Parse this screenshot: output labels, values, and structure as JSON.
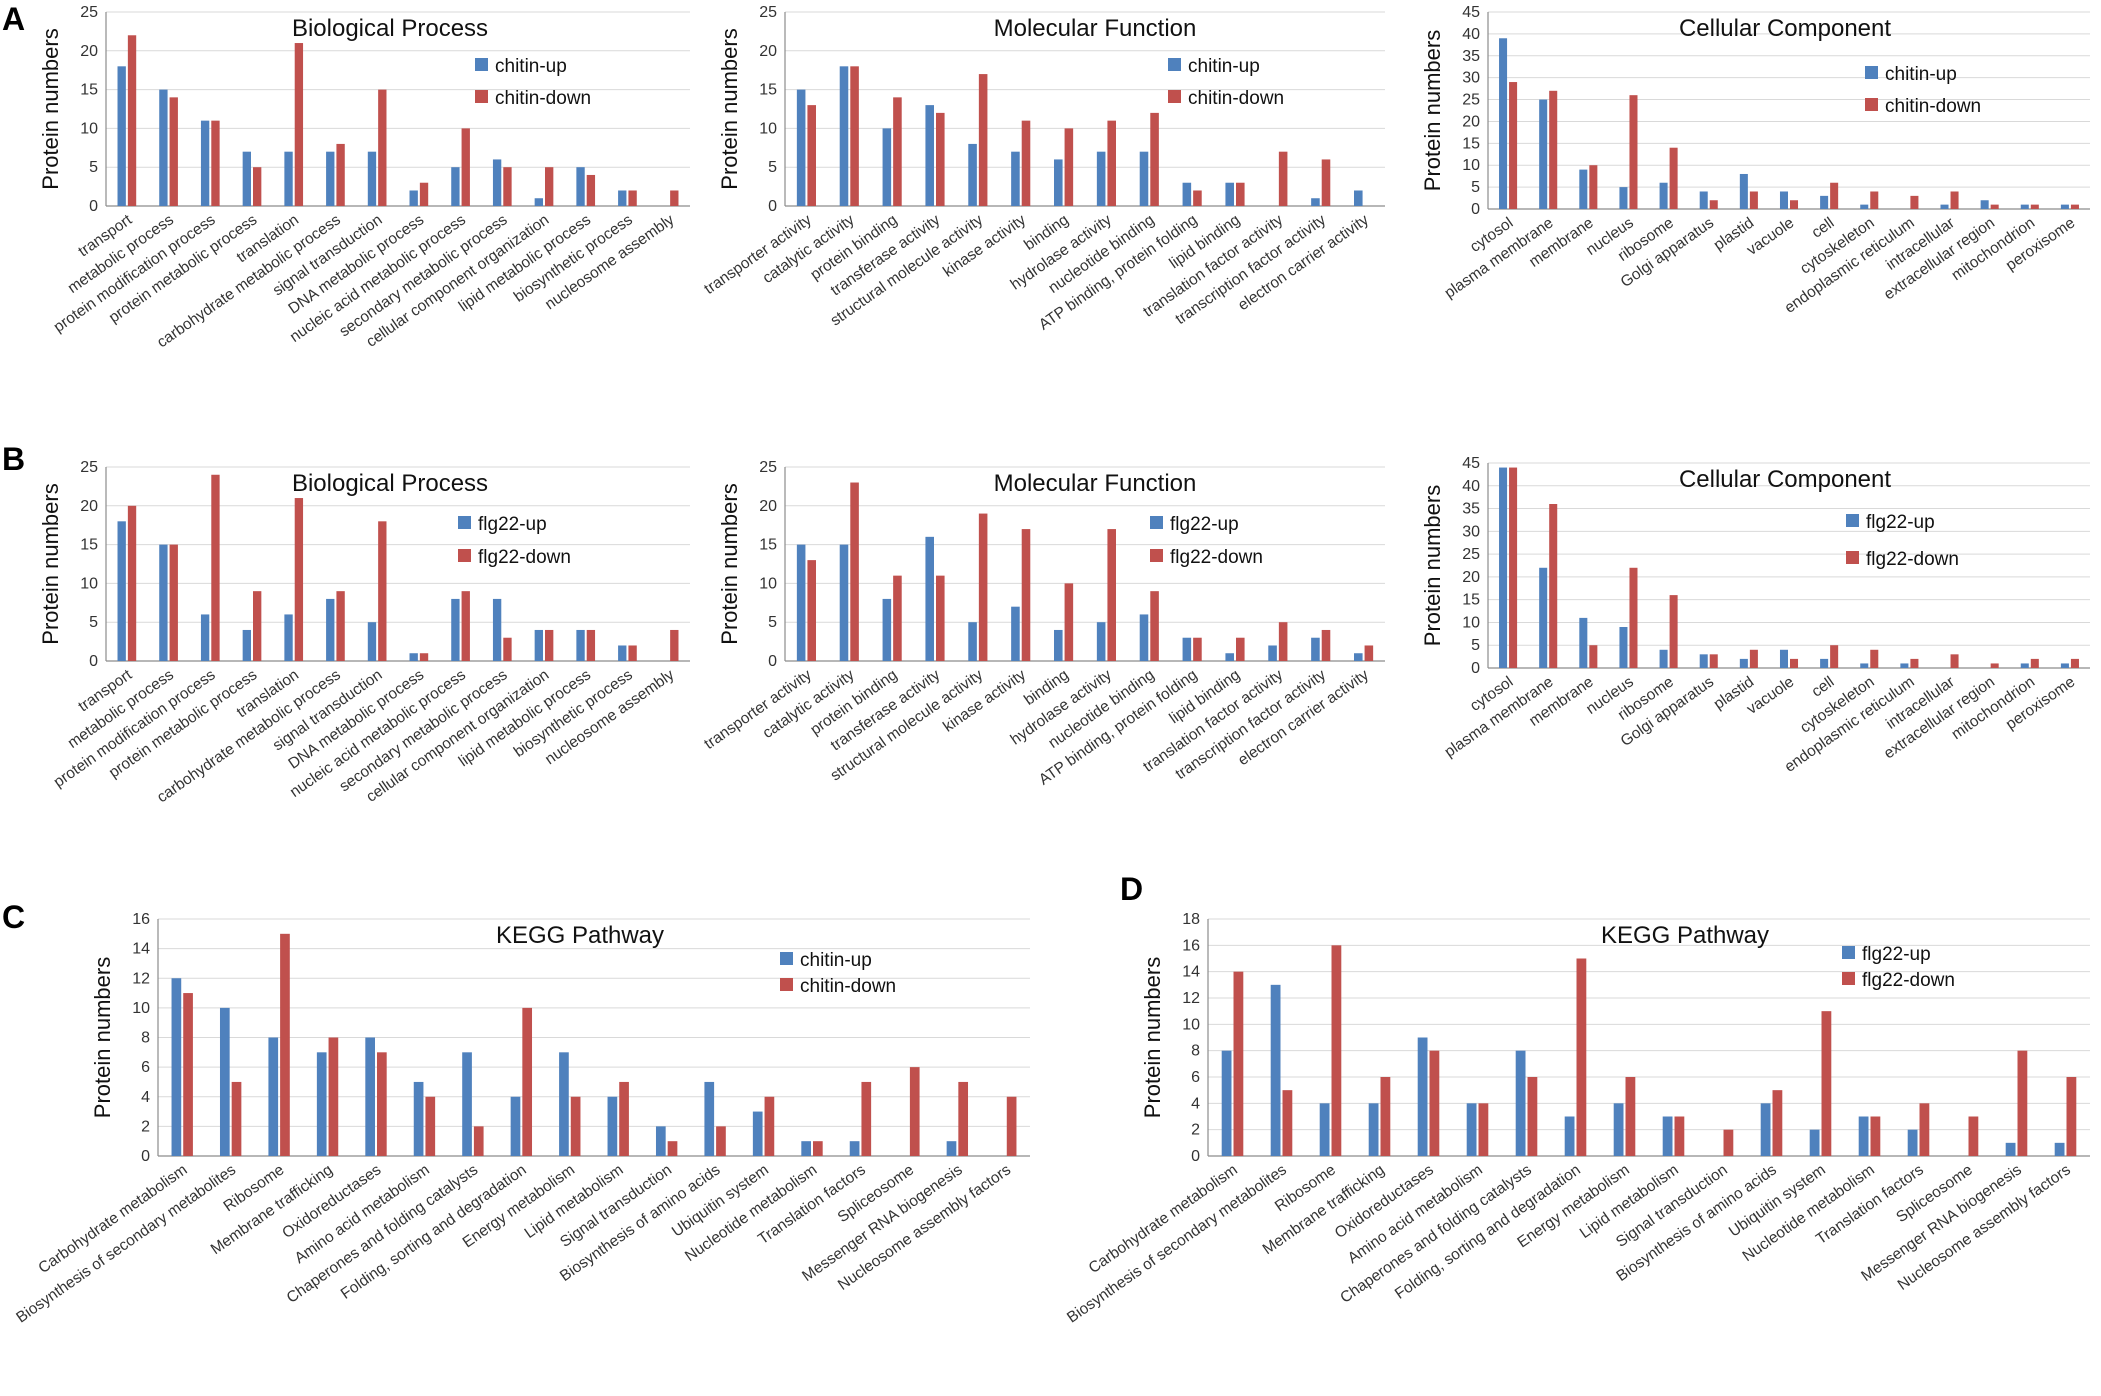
{
  "panel_labels": [
    "A",
    "B",
    "C",
    "D"
  ],
  "colors": {
    "up": "#4f81bd",
    "down": "#c0504d",
    "grid": "#d9d9d9"
  },
  "chart_data": [
    {
      "panel": "A",
      "type": "bar",
      "title": "Biological Process",
      "ylabel": "Protein numbers",
      "ylim": [
        0,
        25
      ],
      "yticks": [
        0,
        5,
        10,
        15,
        20,
        25
      ],
      "categories": [
        "transport",
        "metabolic process",
        "protein modification process",
        "protein metabolic process",
        "translation",
        "carbohydrate metabolic process",
        "signal transduction",
        "DNA metabolic process",
        "nucleic acid metabolic process",
        "secondary metabolic process",
        "cellular component organization",
        "lipid metabolic process",
        "biosynthetic process",
        "nucleosome assembly"
      ],
      "series": [
        {
          "name": "chitin-up",
          "values": [
            18,
            15,
            11,
            7,
            7,
            7,
            7,
            2,
            5,
            6,
            1,
            5,
            2,
            0
          ]
        },
        {
          "name": "chitin-down",
          "values": [
            22,
            14,
            11,
            5,
            21,
            8,
            15,
            3,
            10,
            5,
            5,
            4,
            2,
            2
          ]
        }
      ]
    },
    {
      "panel": "A",
      "type": "bar",
      "title": "Molecular Function",
      "ylabel": "Protein numbers",
      "ylim": [
        0,
        25
      ],
      "yticks": [
        0,
        5,
        10,
        15,
        20,
        25
      ],
      "categories": [
        "transporter activity",
        "catalytic activity",
        "protein binding",
        "transferase activity",
        "structural molecule activity",
        "kinase activity",
        "binding",
        "hydrolase activity",
        "nucleotide binding",
        "ATP binding, protein folding",
        "lipid binding",
        "translation factor activity",
        "transcription factor activity",
        "electron carrier activity"
      ],
      "series": [
        {
          "name": "chitin-up",
          "values": [
            15,
            18,
            10,
            13,
            8,
            7,
            6,
            7,
            7,
            3,
            3,
            0,
            1,
            2
          ]
        },
        {
          "name": "chitin-down",
          "values": [
            13,
            18,
            14,
            12,
            17,
            11,
            10,
            11,
            12,
            2,
            3,
            7,
            6,
            0
          ]
        }
      ]
    },
    {
      "panel": "A",
      "type": "bar",
      "title": "Cellular Component",
      "ylabel": "Protein numbers",
      "ylim": [
        0,
        45
      ],
      "yticks": [
        0,
        5,
        10,
        15,
        20,
        25,
        30,
        35,
        40,
        45
      ],
      "categories": [
        "cytosol",
        "plasma membrane",
        "membrane",
        "nucleus",
        "ribosome",
        "Golgi apparatus",
        "plastid",
        "vacuole",
        "cell",
        "cytoskeleton",
        "endoplasmic reticulum",
        "intracellular",
        "extracellular region",
        "mitochondrion",
        "peroxisome"
      ],
      "series": [
        {
          "name": "chitin-up",
          "values": [
            39,
            25,
            9,
            5,
            6,
            4,
            8,
            4,
            3,
            1,
            0,
            1,
            2,
            1,
            1
          ]
        },
        {
          "name": "chitin-down",
          "values": [
            29,
            27,
            10,
            26,
            14,
            2,
            4,
            2,
            6,
            4,
            3,
            4,
            1,
            1,
            1
          ]
        }
      ]
    },
    {
      "panel": "B",
      "type": "bar",
      "title": "Biological Process",
      "ylabel": "Protein numbers",
      "ylim": [
        0,
        25
      ],
      "yticks": [
        0,
        5,
        10,
        15,
        20,
        25
      ],
      "categories": [
        "transport",
        "metabolic process",
        "protein modification process",
        "protein metabolic process",
        "translation",
        "carbohydrate metabolic process",
        "signal transduction",
        "DNA metabolic process",
        "nucleic acid metabolic process",
        "secondary metabolic process",
        "cellular component organization",
        "lipid metabolic process",
        "biosynthetic process",
        "nucleosome assembly"
      ],
      "series": [
        {
          "name": "flg22-up",
          "values": [
            18,
            15,
            6,
            4,
            6,
            8,
            5,
            1,
            8,
            8,
            4,
            4,
            2,
            0
          ]
        },
        {
          "name": "flg22-down",
          "values": [
            20,
            15,
            24,
            9,
            21,
            9,
            18,
            1,
            9,
            3,
            4,
            4,
            2,
            4
          ]
        }
      ]
    },
    {
      "panel": "B",
      "type": "bar",
      "title": "Molecular Function",
      "ylabel": "Protein numbers",
      "ylim": [
        0,
        25
      ],
      "yticks": [
        0,
        5,
        10,
        15,
        20,
        25
      ],
      "categories": [
        "transporter activity",
        "catalytic activity",
        "protein binding",
        "transferase activity",
        "structural molecule activity",
        "kinase activity",
        "binding",
        "hydrolase activity",
        "nucleotide binding",
        "ATP binding, protein folding",
        "lipid binding",
        "translation factor activity",
        "transcription factor activity",
        "electron carrier activity"
      ],
      "series": [
        {
          "name": "flg22-up",
          "values": [
            15,
            15,
            8,
            16,
            5,
            7,
            4,
            5,
            6,
            3,
            1,
            2,
            3,
            1
          ]
        },
        {
          "name": "flg22-down",
          "values": [
            13,
            23,
            11,
            11,
            19,
            17,
            10,
            17,
            9,
            3,
            3,
            5,
            4,
            2
          ]
        }
      ]
    },
    {
      "panel": "B",
      "type": "bar",
      "title": "Cellular Component",
      "ylabel": "Protein numbers",
      "ylim": [
        0,
        45
      ],
      "yticks": [
        0,
        5,
        10,
        15,
        20,
        25,
        30,
        35,
        40,
        45
      ],
      "categories": [
        "cytosol",
        "plasma membrane",
        "membrane",
        "nucleus",
        "ribosome",
        "Golgi apparatus",
        "plastid",
        "vacuole",
        "cell",
        "cytoskeleton",
        "endoplasmic reticulum",
        "intracellular",
        "extracellular region",
        "mitochondrion",
        "peroxisome"
      ],
      "series": [
        {
          "name": "flg22-up",
          "values": [
            44,
            22,
            11,
            9,
            4,
            3,
            2,
            4,
            2,
            1,
            1,
            0,
            0,
            1,
            1
          ]
        },
        {
          "name": "flg22-down",
          "values": [
            44,
            36,
            5,
            22,
            16,
            3,
            4,
            2,
            5,
            4,
            2,
            3,
            1,
            2,
            2
          ]
        }
      ]
    },
    {
      "panel": "C",
      "type": "bar",
      "title": "KEGG Pathway",
      "ylabel": "Protein numbers",
      "ylim": [
        0,
        16
      ],
      "yticks": [
        0,
        2,
        4,
        6,
        8,
        10,
        12,
        14,
        16
      ],
      "categories": [
        "Carbohydrate metabolism",
        "Biosynthesis of secondary metabolites",
        "Ribosome",
        "Membrane trafficking",
        "Oxidoreductases",
        "Amino acid metabolism",
        "Chaperones and folding catalysts",
        "Folding, sorting and degradation",
        "Energy metabolism",
        "Lipid metabolism",
        "Signal transduction",
        "Biosynthesis of amino acids",
        "Ubiquitin system",
        "Nucleotide metabolism",
        "Translation factors",
        "Spliceosome",
        "Messenger RNA biogenesis",
        "Nucleosome assembly factors"
      ],
      "series": [
        {
          "name": "chitin-up",
          "values": [
            12,
            10,
            8,
            7,
            8,
            5,
            7,
            4,
            7,
            4,
            2,
            5,
            3,
            1,
            1,
            0,
            1,
            0
          ]
        },
        {
          "name": "chitin-down",
          "values": [
            11,
            5,
            15,
            8,
            7,
            4,
            2,
            10,
            4,
            5,
            1,
            2,
            4,
            1,
            5,
            6,
            5,
            4
          ]
        }
      ]
    },
    {
      "panel": "D",
      "type": "bar",
      "title": "KEGG Pathway",
      "ylabel": "Protein numbers",
      "ylim": [
        0,
        18
      ],
      "yticks": [
        0,
        2,
        4,
        6,
        8,
        10,
        12,
        14,
        16,
        18
      ],
      "categories": [
        "Carbohydrate metabolism",
        "Biosynthesis of secondary metabolites",
        "Ribosome",
        "Membrane trafficking",
        "Oxidoreductases",
        "Amino acid metabolism",
        "Chaperones and folding catalysts",
        "Folding, sorting and degradation",
        "Energy metabolism",
        "Lipid metabolism",
        "Signal transduction",
        "Biosynthesis of amino acids",
        "Ubiquitin system",
        "Nucleotide metabolism",
        "Translation factors",
        "Spliceosome",
        "Messenger RNA biogenesis",
        "Nucleosome assembly factors"
      ],
      "series": [
        {
          "name": "flg22-up",
          "values": [
            8,
            13,
            4,
            4,
            9,
            4,
            8,
            3,
            4,
            3,
            0,
            4,
            2,
            3,
            2,
            0,
            1,
            1
          ]
        },
        {
          "name": "flg22-down",
          "values": [
            14,
            5,
            16,
            6,
            8,
            4,
            6,
            15,
            6,
            3,
            2,
            5,
            11,
            3,
            4,
            3,
            8,
            6
          ]
        }
      ]
    }
  ]
}
